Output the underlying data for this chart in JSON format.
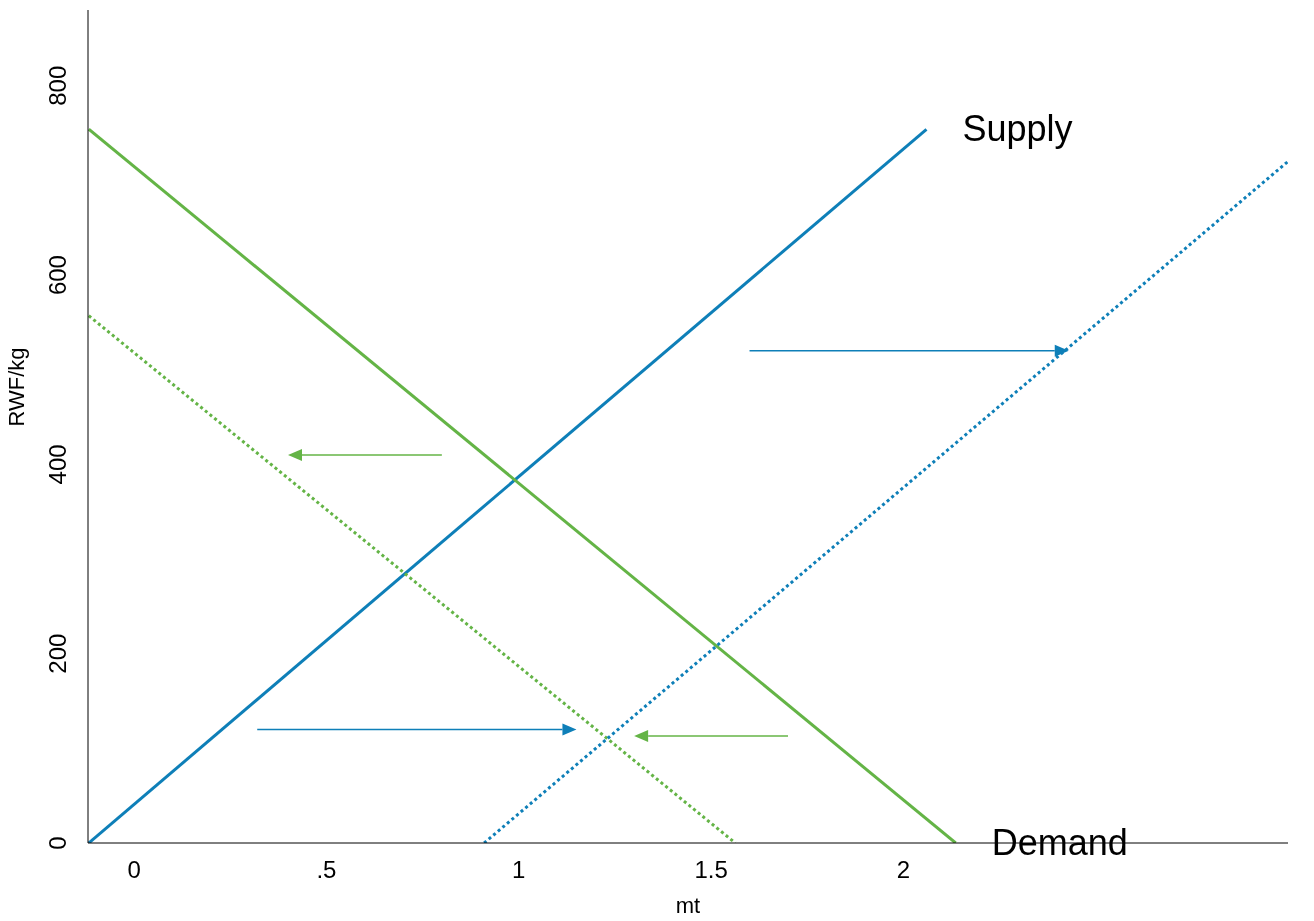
{
  "chart_data": {
    "type": "line",
    "xlabel": "mt",
    "ylabel": "RWF/kg",
    "xlim": [
      -0.12,
      3.0
    ],
    "xticks": [
      0,
      {
        "value": 0.5,
        "label": ".5"
      },
      1,
      1.5,
      2
    ],
    "ylim": [
      0,
      880
    ],
    "yticks": [
      0,
      200,
      400,
      600,
      800
    ],
    "marker": "none",
    "series": [
      {
        "name": "Supply",
        "color": "#0e7fb8",
        "x": [
          -0.118,
          2.06
        ],
        "values": [
          0,
          754
        ],
        "line_style": "solid"
      },
      {
        "name": "Demand",
        "color": "#64b446",
        "x": [
          -0.118,
          2.136
        ],
        "values": [
          754,
          0
        ],
        "line_style": "solid"
      },
      {
        "color": "#64b446",
        "x": [
          -0.118,
          1.563
        ],
        "values": [
          557,
          0
        ],
        "line_style": "dotted"
      },
      {
        "color": "#0e7fb8",
        "x": [
          0.91,
          3.0
        ],
        "values": [
          0,
          720
        ],
        "line_style": "dotted"
      }
    ]
  }
}
